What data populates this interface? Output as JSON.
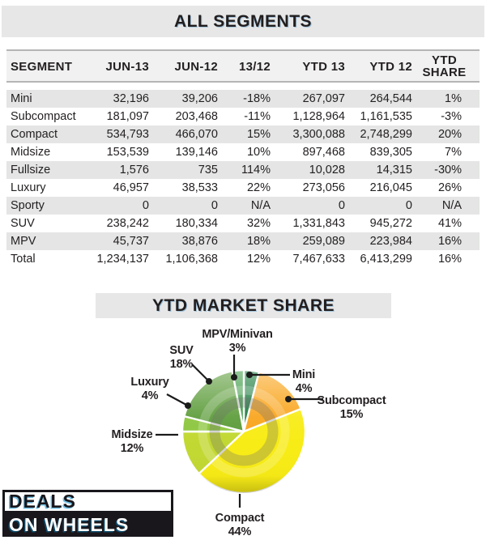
{
  "segments_table": {
    "title": "ALL SEGMENTS",
    "columns": [
      "SEGMENT",
      "JUN-13",
      "JUN-12",
      "13/12",
      "YTD 13",
      "YTD 12",
      "YTD SHARE"
    ],
    "rows": [
      [
        "Mini",
        "32,196",
        "39,206",
        "-18%",
        "267,097",
        "264,544",
        "1%"
      ],
      [
        "Subcompact",
        "181,097",
        "203,468",
        "-11%",
        "1,128,964",
        "1,161,535",
        "-3%"
      ],
      [
        "Compact",
        "534,793",
        "466,070",
        "15%",
        "3,300,088",
        "2,748,299",
        "20%"
      ],
      [
        "Midsize",
        "153,539",
        "139,146",
        "10%",
        "897,468",
        "839,305",
        "7%"
      ],
      [
        "Fullsize",
        "1,576",
        "735",
        "114%",
        "10,028",
        "14,315",
        "-30%"
      ],
      [
        "Luxury",
        "46,957",
        "38,533",
        "22%",
        "273,056",
        "216,045",
        "26%"
      ],
      [
        "Sporty",
        "0",
        "0",
        "N/A",
        "0",
        "0",
        "N/A"
      ],
      [
        "SUV",
        "238,242",
        "180,334",
        "32%",
        "1,331,843",
        "945,272",
        "41%"
      ],
      [
        "MPV",
        "45,737",
        "38,876",
        "18%",
        "259,089",
        "223,984",
        "16%"
      ],
      [
        "Total",
        "1,234,137",
        "1,106,368",
        "12%",
        "7,467,633",
        "6,413,299",
        "16%"
      ]
    ]
  },
  "chart_data": {
    "type": "pie",
    "title": "YTD MARKET SHARE",
    "direction": "clockwise",
    "start_angle_deg": 0,
    "labels_outside": true,
    "slices": [
      {
        "label": "Mini",
        "value": 4,
        "display": "4%",
        "color": "#1B7B3E"
      },
      {
        "label": "Subcompact",
        "value": 15,
        "display": "15%",
        "color": "#F9A51D"
      },
      {
        "label": "Compact",
        "value": 44,
        "display": "44%",
        "color": "#F8EC16"
      },
      {
        "label": "Midsize",
        "value": 12,
        "display": "12%",
        "color": "#C2D832"
      },
      {
        "label": "Luxury",
        "value": 4,
        "display": "4%",
        "color": "#8DC63F"
      },
      {
        "label": "SUV",
        "value": 18,
        "display": "18%",
        "color": "#5E9D3C"
      },
      {
        "label": "MPV/Minivan",
        "value": 3,
        "display": "3%",
        "color": "#3F9C47"
      }
    ],
    "colors_note": {
      "accent_gray_banner": "#e7e7e7",
      "stripe_gray": "#e4e5e4",
      "text": "#231f20"
    }
  },
  "logo": {
    "line1": "DEALS",
    "line2": "ON WHEELS"
  }
}
